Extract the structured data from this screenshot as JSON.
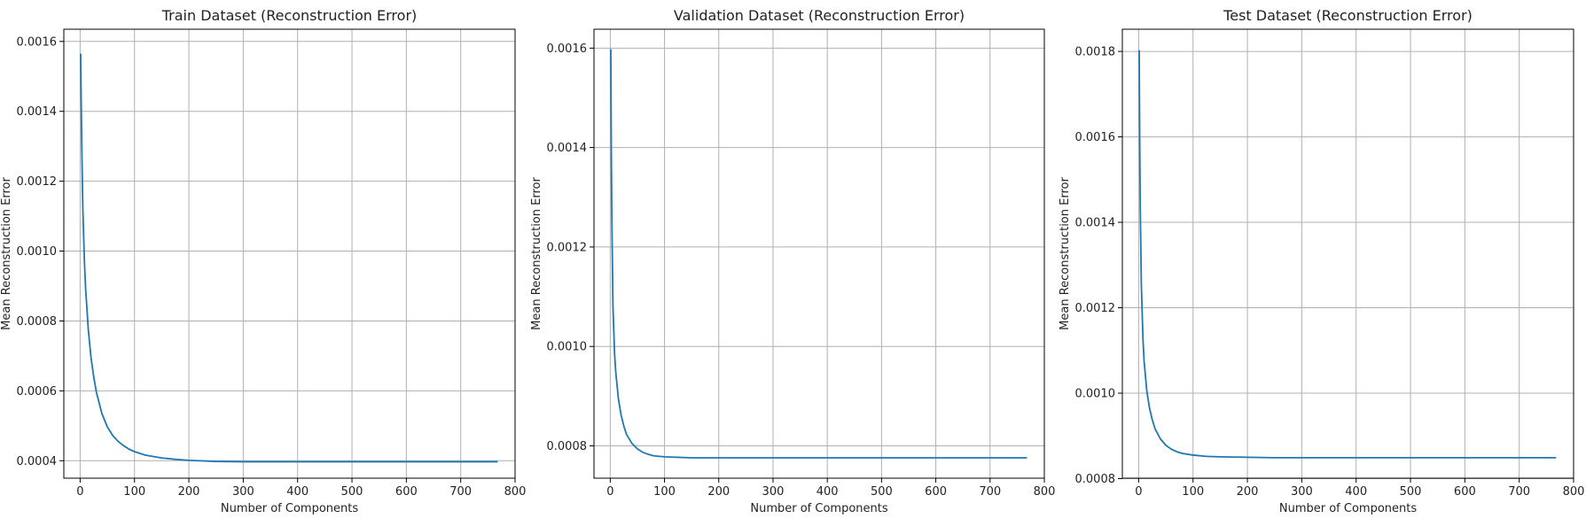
{
  "figure": {
    "colors": {
      "line": "#1f77b4",
      "grid": "#b0b0b0",
      "axis": "#000000",
      "text": "#222222"
    }
  },
  "chart_data": [
    {
      "type": "line",
      "title": "Train Dataset (Reconstruction Error)",
      "xlabel": "Number of Components",
      "ylabel": "Mean Reconstruction Error",
      "xlim": [
        -30,
        800
      ],
      "ylim": [
        0.00035,
        0.001635
      ],
      "xticks": [
        0,
        100,
        200,
        300,
        400,
        500,
        600,
        700,
        800
      ],
      "yticks": [
        0.0004,
        0.0006,
        0.0008,
        0.001,
        0.0012,
        0.0014,
        0.0016
      ],
      "grid": true,
      "series": [
        {
          "x": [
            1,
            2,
            3,
            5,
            8,
            10,
            15,
            20,
            25,
            30,
            40,
            50,
            60,
            70,
            80,
            90,
            100,
            120,
            150,
            175,
            200,
            250,
            300,
            400,
            500,
            600,
            700,
            768
          ],
          "values": [
            0.001565,
            0.00142,
            0.0013,
            0.00112,
            0.000965,
            0.000895,
            0.000775,
            0.000695,
            0.00064,
            0.000595,
            0.000535,
            0.000497,
            0.000472,
            0.000455,
            0.000443,
            0.000433,
            0.000426,
            0.000416,
            0.000408,
            0.000404,
            0.000401,
            0.000398,
            0.000397,
            0.000397,
            0.000397,
            0.000397,
            0.000397,
            0.000397
          ]
        }
      ]
    },
    {
      "type": "line",
      "title": "Validation Dataset (Reconstruction Error)",
      "xlabel": "Number of Components",
      "ylabel": "Mean Reconstruction Error",
      "xlim": [
        -30,
        800
      ],
      "ylim": [
        0.000735,
        0.001638
      ],
      "xticks": [
        0,
        100,
        200,
        300,
        400,
        500,
        600,
        700,
        800
      ],
      "yticks": [
        0.0008,
        0.001,
        0.0012,
        0.0014,
        0.0016
      ],
      "grid": true,
      "series": [
        {
          "x": [
            1,
            2,
            3,
            5,
            8,
            10,
            15,
            20,
            25,
            30,
            40,
            50,
            60,
            70,
            80,
            100,
            125,
            150,
            200,
            250,
            300,
            400,
            500,
            600,
            700,
            768
          ],
          "values": [
            0.001598,
            0.00138,
            0.00125,
            0.00108,
            0.000985,
            0.00095,
            0.000895,
            0.000862,
            0.00084,
            0.000823,
            0.000805,
            0.000794,
            0.000787,
            0.000783,
            0.00078,
            0.000778,
            0.000777,
            0.000776,
            0.000776,
            0.000776,
            0.000776,
            0.000776,
            0.000776,
            0.000776,
            0.000776,
            0.000776
          ]
        }
      ]
    },
    {
      "type": "line",
      "title": "Test Dataset (Reconstruction Error)",
      "xlabel": "Number of Components",
      "ylabel": "Mean Reconstruction Error",
      "xlim": [
        -30,
        800
      ],
      "ylim": [
        0.000801,
        0.001852
      ],
      "xticks": [
        0,
        100,
        200,
        300,
        400,
        500,
        600,
        700,
        800
      ],
      "yticks": [
        0.0008,
        0.001,
        0.0012,
        0.0014,
        0.0016,
        0.0018
      ],
      "grid": true,
      "series": [
        {
          "x": [
            1,
            2,
            3,
            5,
            8,
            10,
            15,
            20,
            25,
            30,
            40,
            50,
            60,
            70,
            80,
            100,
            125,
            150,
            200,
            250,
            300,
            400,
            500,
            600,
            700,
            768
          ],
          "values": [
            0.001803,
            0.00158,
            0.00143,
            0.00125,
            0.001125,
            0.001075,
            0.001005,
            0.000965,
            0.000938,
            0.000917,
            0.000893,
            0.000878,
            0.000869,
            0.000863,
            0.000859,
            0.000855,
            0.000852,
            0.000851,
            0.00085,
            0.000849,
            0.000849,
            0.000849,
            0.000849,
            0.000849,
            0.000849,
            0.000849
          ]
        }
      ]
    }
  ]
}
